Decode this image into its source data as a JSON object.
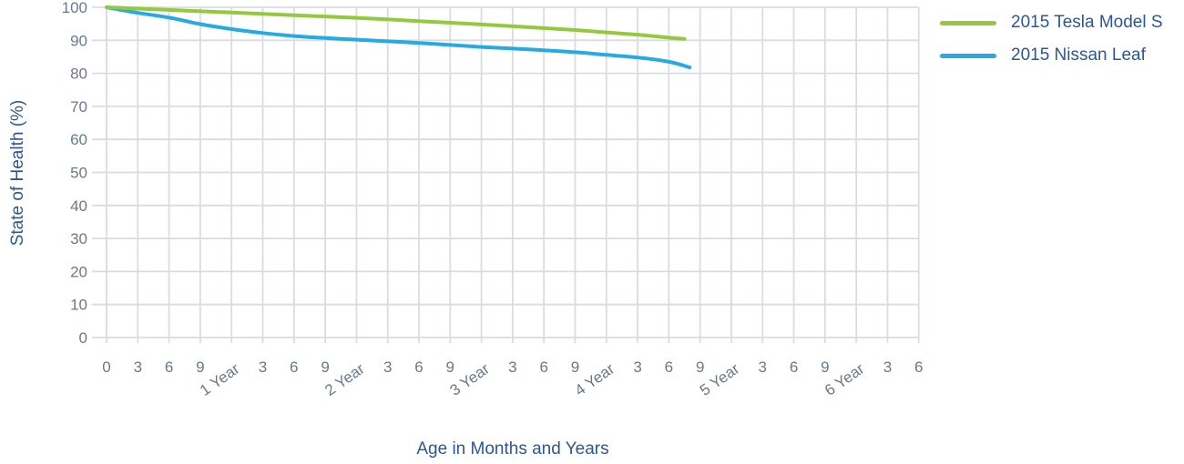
{
  "chart_data": {
    "type": "line",
    "xlabel": "Age in Months and Years",
    "ylabel": "State of Health (%)",
    "ylim": [
      0,
      100
    ],
    "xlim_months": [
      0,
      78
    ],
    "grid": true,
    "legend_position": "top-right",
    "y_tick_values": [
      100,
      90,
      80,
      70,
      60,
      50,
      40,
      30,
      20,
      10,
      0
    ],
    "y_tick_labels": [
      "100",
      "90",
      "80",
      "70",
      "60",
      "50",
      "40",
      "30",
      "20",
      "10",
      "0"
    ],
    "x_tick_months": [
      0,
      3,
      6,
      9,
      12,
      15,
      18,
      21,
      24,
      27,
      30,
      33,
      36,
      39,
      42,
      45,
      48,
      51,
      54,
      57,
      60,
      63,
      66,
      69,
      72,
      75,
      78
    ],
    "x_tick_labels": [
      "0",
      "3",
      "6",
      "9",
      "1 Year",
      "3",
      "6",
      "9",
      "2 Year",
      "3",
      "6",
      "9",
      "3 Year",
      "3",
      "6",
      "9",
      "4 Year",
      "3",
      "6",
      "9",
      "5 Year",
      "3",
      "6",
      "9",
      "6 Year",
      "3",
      "6"
    ],
    "series": [
      {
        "name": "2015 Tesla Model S",
        "color": "#95c93d",
        "points": [
          [
            0,
            100
          ],
          [
            6,
            99.2
          ],
          [
            12,
            98.4
          ],
          [
            18,
            97.6
          ],
          [
            24,
            96.8
          ],
          [
            30,
            95.8
          ],
          [
            36,
            94.8
          ],
          [
            42,
            93.7
          ],
          [
            45,
            93.1
          ],
          [
            48,
            92.4
          ],
          [
            51,
            91.7
          ],
          [
            54,
            90.8
          ],
          [
            55.5,
            90.4
          ]
        ]
      },
      {
        "name": "2015 Nissan Leaf",
        "color": "#27aae1",
        "points": [
          [
            0,
            100
          ],
          [
            3,
            98.3
          ],
          [
            6,
            96.9
          ],
          [
            9,
            94.9
          ],
          [
            12,
            93.4
          ],
          [
            15,
            92.2
          ],
          [
            18,
            91.3
          ],
          [
            21,
            90.7
          ],
          [
            24,
            90.2
          ],
          [
            27,
            89.7
          ],
          [
            30,
            89.2
          ],
          [
            33,
            88.6
          ],
          [
            36,
            88.0
          ],
          [
            39,
            87.5
          ],
          [
            42,
            87.0
          ],
          [
            45,
            86.4
          ],
          [
            48,
            85.6
          ],
          [
            51,
            84.8
          ],
          [
            54,
            83.5
          ],
          [
            56,
            81.8
          ]
        ]
      }
    ]
  },
  "colors": {
    "axis_title": "#2c5791",
    "legend_text": "#2c5791",
    "tick_label": "#69788e",
    "gridline": "#d9dce2",
    "background": "#ffffff"
  }
}
